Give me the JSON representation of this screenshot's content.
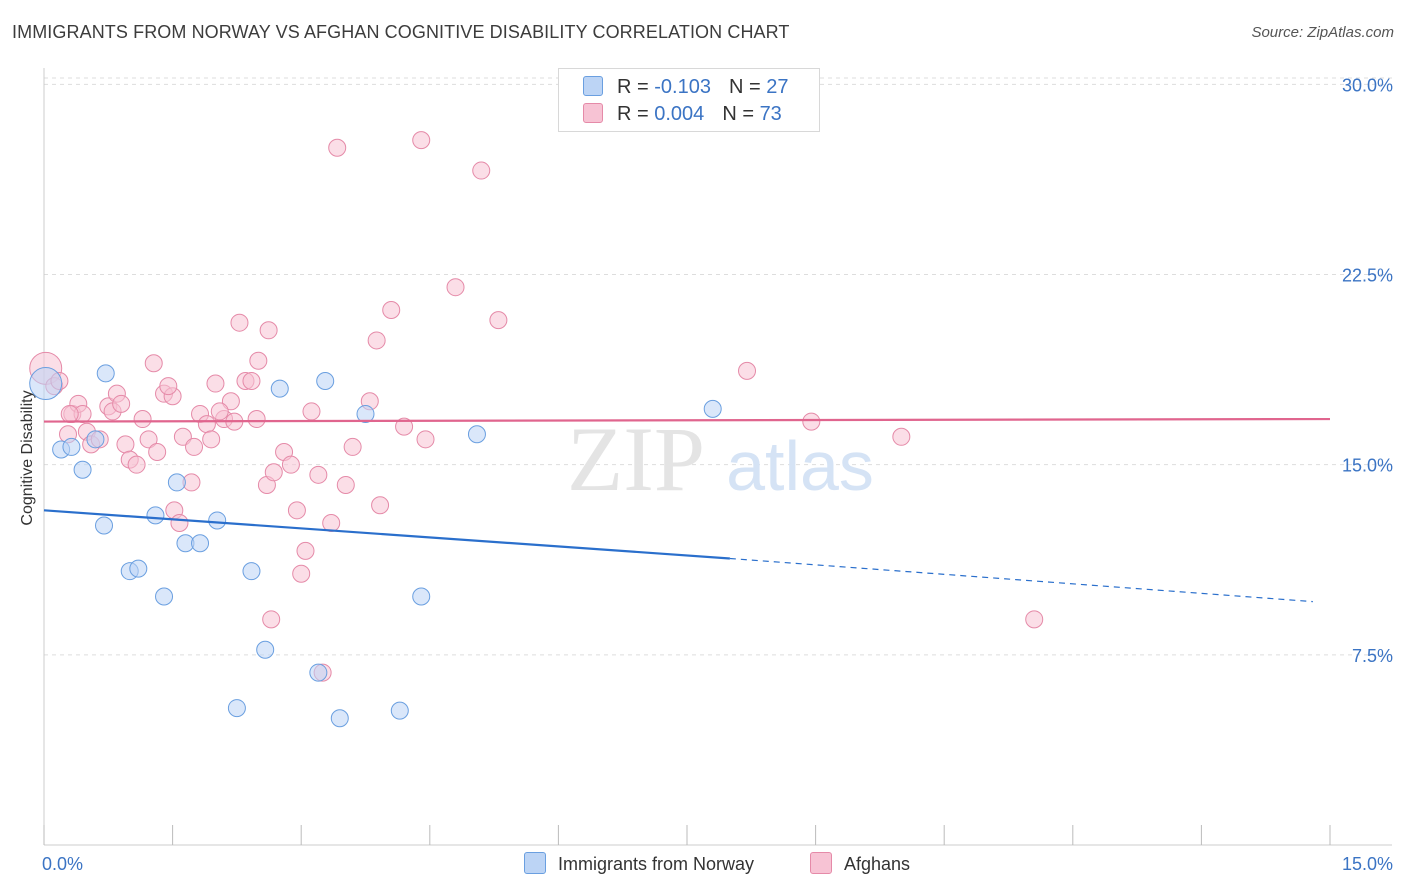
{
  "title": "IMMIGRANTS FROM NORWAY VS AFGHAN COGNITIVE DISABILITY CORRELATION CHART",
  "source": "Source: ZipAtlas.com",
  "watermark": {
    "zip": "ZIP",
    "atlas": "atlas"
  },
  "legend": {
    "row1": {
      "r_label": "R = ",
      "r_value": "-0.103",
      "n_label": "N = ",
      "n_value": "27"
    },
    "row2": {
      "r_label": "R = ",
      "r_value": "0.004",
      "n_label": "N = ",
      "n_value": "73"
    }
  },
  "colors": {
    "blue_fill": "#bcd4f5",
    "blue_stroke": "#6a9fe0",
    "blue_line": "#2a6fcc",
    "pink_fill": "#f7c3d4",
    "pink_stroke": "#e58aa8",
    "pink_line": "#e0658e",
    "tick_label": "#3b74c4",
    "grid": "#dddddd"
  },
  "chart_data": {
    "type": "scatter",
    "ylabel": "Cognitive Disability",
    "xlim": [
      0,
      15
    ],
    "ylim": [
      0,
      31
    ],
    "x_tick_labels": [
      {
        "value": 0,
        "label": "0.0%"
      },
      {
        "value": 15,
        "label": "15.0%"
      }
    ],
    "y_tick_labels": [
      {
        "value": 7.5,
        "label": "7.5%"
      },
      {
        "value": 15,
        "label": "15.0%"
      },
      {
        "value": 22.5,
        "label": "22.5%"
      },
      {
        "value": 30,
        "label": "30.0%"
      }
    ],
    "grid": true,
    "legend_position": "top-center",
    "series": [
      {
        "name": "Immigrants from Norway",
        "color": "#6a9fe0",
        "trend": {
          "x0": 0,
          "y0": 13.2,
          "x1": 8.0,
          "y1": 11.3,
          "dashed_to_x": 14.8,
          "dashed_to_y": 9.6
        },
        "points": [
          [
            0.02,
            18.2,
            "big"
          ],
          [
            0.2,
            15.6
          ],
          [
            0.32,
            15.7
          ],
          [
            0.45,
            14.8
          ],
          [
            0.6,
            16.0
          ],
          [
            0.72,
            18.6
          ],
          [
            0.7,
            12.6
          ],
          [
            1.0,
            10.8
          ],
          [
            1.1,
            10.9
          ],
          [
            1.3,
            13.0
          ],
          [
            1.4,
            9.8
          ],
          [
            1.55,
            14.3
          ],
          [
            1.65,
            11.9
          ],
          [
            1.82,
            11.9
          ],
          [
            2.02,
            12.8
          ],
          [
            2.25,
            5.4
          ],
          [
            2.42,
            10.8
          ],
          [
            2.58,
            7.7
          ],
          [
            2.75,
            18.0
          ],
          [
            3.2,
            6.8
          ],
          [
            3.28,
            18.3
          ],
          [
            3.45,
            5.0
          ],
          [
            3.75,
            17.0
          ],
          [
            4.15,
            5.3
          ],
          [
            4.4,
            9.8
          ],
          [
            5.05,
            16.2
          ],
          [
            7.8,
            17.2
          ]
        ]
      },
      {
        "name": "Afghans",
        "color": "#e58aa8",
        "trend": {
          "x0": 0,
          "y0": 16.7,
          "x1": 15,
          "y1": 16.8
        },
        "points": [
          [
            0.02,
            18.8,
            "big"
          ],
          [
            0.12,
            18.1
          ],
          [
            0.18,
            18.3
          ],
          [
            0.28,
            16.2
          ],
          [
            0.33,
            17.0
          ],
          [
            0.4,
            17.4
          ],
          [
            0.45,
            17.0
          ],
          [
            0.5,
            16.3
          ],
          [
            0.55,
            15.8
          ],
          [
            0.65,
            16.0
          ],
          [
            0.75,
            17.3
          ],
          [
            0.8,
            17.1
          ],
          [
            0.85,
            17.8
          ],
          [
            0.95,
            15.8
          ],
          [
            1.0,
            15.2
          ],
          [
            1.08,
            15.0
          ],
          [
            1.15,
            16.8
          ],
          [
            1.22,
            16.0
          ],
          [
            1.28,
            19.0
          ],
          [
            1.32,
            15.5
          ],
          [
            1.4,
            17.8
          ],
          [
            1.5,
            17.7
          ],
          [
            1.52,
            13.2
          ],
          [
            1.58,
            12.7
          ],
          [
            1.62,
            16.1
          ],
          [
            1.72,
            14.3
          ],
          [
            1.75,
            15.7
          ],
          [
            1.82,
            17.0
          ],
          [
            1.9,
            16.6
          ],
          [
            1.95,
            16.0
          ],
          [
            2.0,
            18.2
          ],
          [
            2.1,
            16.8
          ],
          [
            2.18,
            17.5
          ],
          [
            2.22,
            16.7
          ],
          [
            2.28,
            20.6
          ],
          [
            2.35,
            18.3
          ],
          [
            2.42,
            18.3
          ],
          [
            2.48,
            16.8
          ],
          [
            2.5,
            19.1
          ],
          [
            2.6,
            14.2
          ],
          [
            2.62,
            20.3
          ],
          [
            2.68,
            14.7
          ],
          [
            2.8,
            15.5
          ],
          [
            2.88,
            15.0
          ],
          [
            2.95,
            13.2
          ],
          [
            3.0,
            10.7
          ],
          [
            3.05,
            11.6
          ],
          [
            3.12,
            17.1
          ],
          [
            3.2,
            14.6
          ],
          [
            3.35,
            12.7
          ],
          [
            3.42,
            27.5
          ],
          [
            3.52,
            14.2
          ],
          [
            3.6,
            15.7
          ],
          [
            3.8,
            17.5
          ],
          [
            3.88,
            19.9
          ],
          [
            3.92,
            13.4
          ],
          [
            4.05,
            21.1
          ],
          [
            4.2,
            16.5
          ],
          [
            4.4,
            27.8
          ],
          [
            4.45,
            16.0
          ],
          [
            4.8,
            22.0
          ],
          [
            5.1,
            26.6
          ],
          [
            5.3,
            20.7
          ],
          [
            2.65,
            8.9
          ],
          [
            3.25,
            6.8
          ],
          [
            8.2,
            18.7
          ],
          [
            8.95,
            16.7
          ],
          [
            10.0,
            16.1
          ],
          [
            11.55,
            8.9
          ],
          [
            0.3,
            17.0
          ],
          [
            0.9,
            17.4
          ],
          [
            1.45,
            18.1
          ],
          [
            2.05,
            17.1
          ]
        ]
      }
    ]
  },
  "bottom_legend": [
    {
      "label": "Immigrants from Norway"
    },
    {
      "label": "Afghans"
    }
  ]
}
